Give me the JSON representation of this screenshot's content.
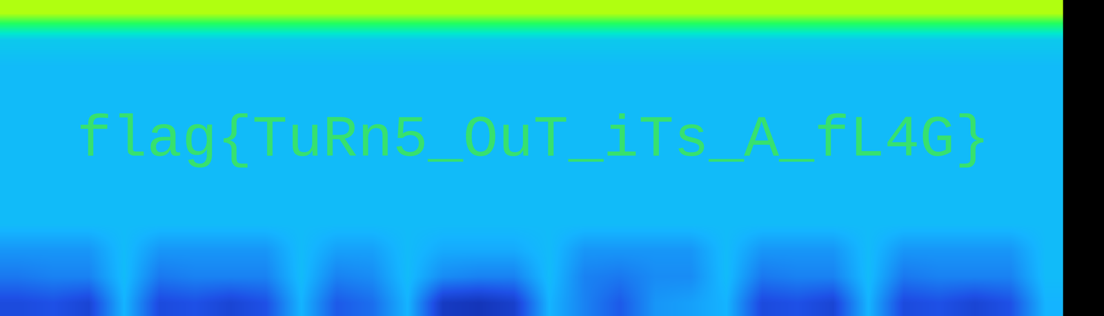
{
  "chart_data": {
    "type": "heatmap",
    "annotations": [
      "flag{TuRn5_OuT_iTs_A_fL4G}"
    ],
    "zlim": [
      0,
      100
    ],
    "tick_labels": false,
    "cells": [
      [
        85,
        85,
        85,
        85,
        85,
        85,
        85,
        85,
        85,
        85,
        85,
        85,
        85,
        85,
        85,
        85,
        85,
        85,
        85,
        85,
        85,
        85,
        85,
        85,
        85,
        85,
        85,
        85,
        85,
        85
      ],
      [
        46,
        46,
        46,
        46,
        46,
        46,
        46,
        46,
        46,
        46,
        46,
        46,
        46,
        46,
        46,
        46,
        46,
        46,
        46,
        46,
        46,
        46,
        46,
        46,
        46,
        46,
        46,
        46,
        46,
        46
      ],
      [
        42,
        42,
        42,
        42,
        42,
        42,
        42,
        42,
        42,
        42,
        42,
        42,
        42,
        42,
        42,
        42,
        42,
        42,
        42,
        42,
        42,
        42,
        42,
        42,
        42,
        42,
        42,
        42,
        42,
        42
      ],
      [
        42,
        42,
        42,
        42,
        42,
        42,
        42,
        42,
        42,
        42,
        42,
        42,
        42,
        42,
        42,
        42,
        42,
        42,
        42,
        42,
        42,
        42,
        42,
        42,
        42,
        42,
        42,
        42,
        42,
        42
      ],
      [
        42,
        42,
        42,
        42,
        42,
        42,
        42,
        42,
        42,
        42,
        42,
        42,
        42,
        42,
        42,
        42,
        42,
        42,
        42,
        42,
        42,
        42,
        42,
        42,
        42,
        42,
        42,
        42,
        42,
        42
      ],
      [
        42,
        42,
        42,
        42,
        42,
        42,
        42,
        42,
        42,
        42,
        42,
        42,
        42,
        42,
        42,
        42,
        42,
        42,
        42,
        42,
        42,
        42,
        42,
        42,
        42,
        42,
        42,
        42,
        42,
        42
      ],
      [
        42,
        42,
        42,
        42,
        42,
        42,
        42,
        42,
        42,
        42,
        42,
        42,
        42,
        42,
        42,
        42,
        42,
        42,
        42,
        42,
        42,
        42,
        42,
        42,
        42,
        42,
        42,
        42,
        42,
        42
      ],
      [
        42,
        42,
        42,
        42,
        42,
        42,
        42,
        42,
        42,
        42,
        42,
        42,
        42,
        42,
        42,
        42,
        42,
        42,
        42,
        42,
        42,
        42,
        42,
        42,
        42,
        42,
        42,
        42,
        42,
        42
      ],
      [
        42,
        42,
        42,
        42,
        42,
        42,
        42,
        42,
        42,
        42,
        42,
        42,
        42,
        42,
        42,
        42,
        42,
        42,
        42,
        42,
        42,
        42,
        42,
        42,
        42,
        42,
        42,
        42,
        42,
        42
      ],
      [
        34,
        34,
        34,
        42,
        34,
        34,
        34,
        34,
        42,
        36,
        36,
        42,
        38,
        38,
        38,
        42,
        34,
        34,
        34,
        34,
        42,
        34,
        34,
        34,
        42,
        34,
        34,
        34,
        34,
        42
      ],
      [
        28,
        30,
        30,
        42,
        28,
        30,
        30,
        30,
        42,
        30,
        32,
        42,
        32,
        30,
        30,
        42,
        30,
        28,
        32,
        32,
        42,
        28,
        30,
        30,
        42,
        28,
        30,
        30,
        30,
        42
      ],
      [
        18,
        20,
        16,
        40,
        18,
        20,
        16,
        20,
        40,
        22,
        26,
        40,
        12,
        10,
        14,
        40,
        30,
        22,
        34,
        36,
        40,
        18,
        20,
        16,
        40,
        18,
        20,
        16,
        20,
        40
      ]
    ]
  }
}
